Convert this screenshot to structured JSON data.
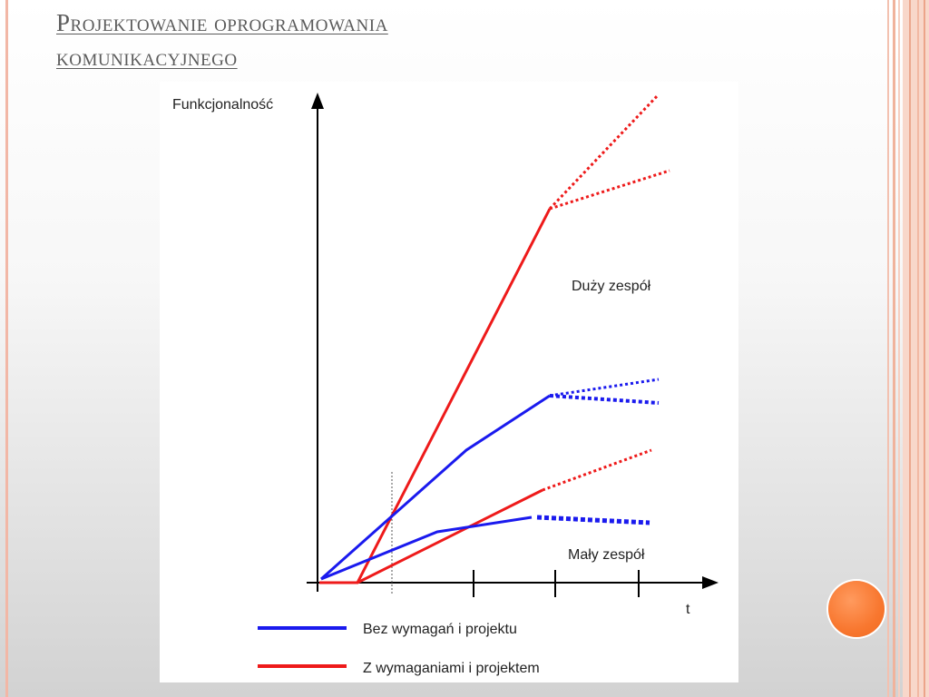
{
  "slide": {
    "title_line1": "Projektowanie oprogramowania",
    "title_line2": "komunikacyjnego"
  },
  "diagram": {
    "y_axis_label": "Funkcjonalność",
    "x_axis_label": "t",
    "label_large_team": "Duży zespół",
    "label_small_team": "Mały zespół",
    "legend": [
      {
        "label": "Bez wymagań i projektu",
        "color": "#1a1aee"
      },
      {
        "label": "Z wymaganiami i projektem",
        "color": "#ee1a1a"
      }
    ]
  },
  "colors": {
    "title": "#5b5b5b",
    "blue_series": "#1a1aee",
    "red_series": "#ee1a1a",
    "accent_orb": "#f8772f"
  }
}
